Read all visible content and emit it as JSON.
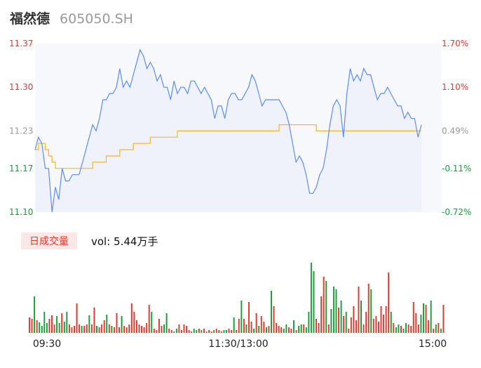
{
  "header": {
    "name": "福然德",
    "code": "605050.SH"
  },
  "volume": {
    "badge": "日成交量",
    "text": "vol: 5.44万手"
  },
  "colors": {
    "up": "#e03a2e",
    "down": "#1a9e3a",
    "neutral": "#999999",
    "price_line": "#5b8def",
    "avg_line": "#f2b632"
  },
  "chart_data": {
    "type": "line",
    "prev_close": 11.2,
    "ylim": [
      11.1,
      11.37
    ],
    "y_ticks": [
      {
        "label": "11.37",
        "pct": "1.70%",
        "value": 11.37,
        "dir": "up"
      },
      {
        "label": "11.30",
        "pct": "1.10%",
        "value": 11.3,
        "dir": "up"
      },
      {
        "label": "11.23",
        "pct": "0.49%",
        "value": 11.23,
        "dir": "neutral"
      },
      {
        "label": "11.17",
        "pct": "-0.11%",
        "value": 11.17,
        "dir": "down"
      },
      {
        "label": "11.10",
        "pct": "-0.72%",
        "value": 11.1,
        "dir": "down"
      }
    ],
    "x_ticks": [
      "09:30",
      "11:30/13:00",
      "15:00"
    ],
    "series": [
      {
        "values": [
          11.2,
          11.22,
          11.21,
          11.17,
          11.17,
          11.1,
          11.14,
          11.12,
          11.17,
          11.15,
          11.15,
          11.16,
          11.16,
          11.16,
          11.18,
          11.2,
          11.22,
          11.24,
          11.23,
          11.25,
          11.28,
          11.28,
          11.29,
          11.29,
          11.3,
          11.33,
          11.3,
          11.31,
          11.3,
          11.32,
          11.34,
          11.36,
          11.35,
          11.33,
          11.34,
          11.33,
          11.31,
          11.32,
          11.3,
          11.3,
          11.28,
          11.31,
          11.29,
          11.3,
          11.3,
          11.29,
          11.31,
          11.31,
          11.3,
          11.29,
          11.3,
          11.29,
          11.28,
          11.25,
          11.27,
          11.27,
          11.25,
          11.28,
          11.29,
          11.29,
          11.28,
          11.28,
          11.29,
          11.3,
          11.32,
          11.31,
          11.29,
          11.27,
          11.28,
          11.28,
          11.28,
          11.28,
          11.28,
          11.27,
          11.26,
          11.24,
          11.21,
          11.18,
          11.19,
          11.18,
          11.16,
          11.13,
          11.13,
          11.14,
          11.16,
          11.17,
          11.2,
          11.24,
          11.27,
          11.28,
          11.27,
          11.22,
          11.29,
          11.33,
          11.31,
          11.32,
          11.31,
          11.33,
          11.32,
          11.32,
          11.3,
          11.28,
          11.29,
          11.29,
          11.3,
          11.29,
          11.28,
          11.27,
          11.27,
          11.25,
          11.26,
          11.25,
          11.25,
          11.22,
          11.24
        ],
        "x_start": 0,
        "x_step": 2
      },
      {
        "values": [
          11.2,
          11.21,
          11.21,
          11.2,
          11.19,
          11.18,
          11.17,
          11.17,
          11.17,
          11.17,
          11.17,
          11.17,
          11.17,
          11.17,
          11.17,
          11.17,
          11.17,
          11.18,
          11.18,
          11.18,
          11.18,
          11.19,
          11.19,
          11.19,
          11.19,
          11.2,
          11.2,
          11.2,
          11.2,
          11.21,
          11.21,
          11.21,
          11.21,
          11.21,
          11.22,
          11.22,
          11.22,
          11.22,
          11.22,
          11.22,
          11.22,
          11.22,
          11.23,
          11.23,
          11.23,
          11.23,
          11.23,
          11.23,
          11.23,
          11.23,
          11.23,
          11.23,
          11.23,
          11.23,
          11.23,
          11.23,
          11.23,
          11.23,
          11.23,
          11.23,
          11.23,
          11.23,
          11.23,
          11.23,
          11.23,
          11.23,
          11.23,
          11.23,
          11.23,
          11.23,
          11.23,
          11.23,
          11.24,
          11.24,
          11.24,
          11.24,
          11.24,
          11.24,
          11.24,
          11.24,
          11.24,
          11.24,
          11.24,
          11.23,
          11.23,
          11.23,
          11.23,
          11.23,
          11.23,
          11.23,
          11.23,
          11.23,
          11.23,
          11.23,
          11.23,
          11.23,
          11.23,
          11.23,
          11.23,
          11.23,
          11.23,
          11.23,
          11.23,
          11.23,
          11.23,
          11.23,
          11.23,
          11.23,
          11.23,
          11.23,
          11.23,
          11.23,
          11.23,
          11.23,
          11.23
        ],
        "x_start": 0,
        "x_step": 2
      }
    ],
    "volume": {
      "ymax": 100,
      "bars": [
        [
          22,
          "up"
        ],
        [
          20,
          "up"
        ],
        [
          52,
          "down"
        ],
        [
          18,
          "up"
        ],
        [
          15,
          "down"
        ],
        [
          10,
          "down"
        ],
        [
          30,
          "down"
        ],
        [
          14,
          "down"
        ],
        [
          20,
          "up"
        ],
        [
          25,
          "up"
        ],
        [
          12,
          "up"
        ],
        [
          24,
          "down"
        ],
        [
          14,
          "down"
        ],
        [
          28,
          "up"
        ],
        [
          16,
          "down"
        ],
        [
          30,
          "down"
        ],
        [
          12,
          "up"
        ],
        [
          8,
          "up"
        ],
        [
          10,
          "up"
        ],
        [
          42,
          "up"
        ],
        [
          12,
          "up"
        ],
        [
          10,
          "down"
        ],
        [
          10,
          "up"
        ],
        [
          12,
          "up"
        ],
        [
          25,
          "down"
        ],
        [
          12,
          "up"
        ],
        [
          36,
          "up"
        ],
        [
          10,
          "down"
        ],
        [
          8,
          "up"
        ],
        [
          12,
          "up"
        ],
        [
          18,
          "up"
        ],
        [
          26,
          "down"
        ],
        [
          12,
          "up"
        ],
        [
          10,
          "down"
        ],
        [
          8,
          "up"
        ],
        [
          28,
          "up"
        ],
        [
          8,
          "up"
        ],
        [
          24,
          "down"
        ],
        [
          10,
          "up"
        ],
        [
          8,
          "up"
        ],
        [
          12,
          "up"
        ],
        [
          42,
          "up"
        ],
        [
          30,
          "up"
        ],
        [
          18,
          "up"
        ],
        [
          12,
          "up"
        ],
        [
          10,
          "up"
        ],
        [
          8,
          "up"
        ],
        [
          14,
          "up"
        ],
        [
          40,
          "up"
        ],
        [
          30,
          "down"
        ],
        [
          6,
          "up"
        ],
        [
          4,
          "up"
        ],
        [
          20,
          "up"
        ],
        [
          10,
          "up"
        ],
        [
          12,
          "down"
        ],
        [
          28,
          "down"
        ],
        [
          6,
          "up"
        ],
        [
          4,
          "up"
        ],
        [
          2,
          "down"
        ],
        [
          6,
          "down"
        ],
        [
          12,
          "up"
        ],
        [
          4,
          "up"
        ],
        [
          12,
          "up"
        ],
        [
          10,
          "up"
        ],
        [
          4,
          "up"
        ],
        [
          2,
          "up"
        ],
        [
          6,
          "down"
        ],
        [
          4,
          "down"
        ],
        [
          6,
          "up"
        ],
        [
          4,
          "down"
        ],
        [
          6,
          "up"
        ],
        [
          2,
          "up"
        ],
        [
          4,
          "up"
        ],
        [
          2,
          "up"
        ],
        [
          4,
          "down"
        ],
        [
          6,
          "up"
        ],
        [
          4,
          "up"
        ],
        [
          2,
          "up"
        ],
        [
          4,
          "down"
        ],
        [
          4,
          "down"
        ],
        [
          6,
          "up"
        ],
        [
          4,
          "up"
        ],
        [
          22,
          "down"
        ],
        [
          4,
          "up"
        ],
        [
          20,
          "up"
        ],
        [
          46,
          "down"
        ],
        [
          20,
          "up"
        ],
        [
          12,
          "down"
        ],
        [
          44,
          "up"
        ],
        [
          16,
          "up"
        ],
        [
          6,
          "down"
        ],
        [
          28,
          "up"
        ],
        [
          10,
          "down"
        ],
        [
          24,
          "up"
        ],
        [
          16,
          "up"
        ],
        [
          8,
          "down"
        ],
        [
          10,
          "up"
        ],
        [
          60,
          "down"
        ],
        [
          38,
          "up"
        ],
        [
          14,
          "up"
        ],
        [
          10,
          "up"
        ],
        [
          8,
          "up"
        ],
        [
          6,
          "down"
        ],
        [
          12,
          "down"
        ],
        [
          8,
          "up"
        ],
        [
          6,
          "up"
        ],
        [
          18,
          "down"
        ],
        [
          4,
          "up"
        ],
        [
          10,
          "down"
        ],
        [
          12,
          "down"
        ],
        [
          12,
          "up"
        ],
        [
          8,
          "down"
        ],
        [
          30,
          "down"
        ],
        [
          100,
          "down"
        ],
        [
          88,
          "down"
        ],
        [
          20,
          "up"
        ],
        [
          14,
          "up"
        ],
        [
          52,
          "up"
        ],
        [
          80,
          "up"
        ],
        [
          74,
          "down"
        ],
        [
          12,
          "up"
        ],
        [
          34,
          "down"
        ],
        [
          66,
          "down"
        ],
        [
          62,
          "down"
        ],
        [
          36,
          "up"
        ],
        [
          46,
          "down"
        ],
        [
          24,
          "up"
        ],
        [
          30,
          "down"
        ],
        [
          6,
          "up"
        ],
        [
          22,
          "up"
        ],
        [
          38,
          "up"
        ],
        [
          18,
          "up"
        ],
        [
          66,
          "up"
        ],
        [
          46,
          "down"
        ],
        [
          12,
          "up"
        ],
        [
          30,
          "up"
        ],
        [
          70,
          "up"
        ],
        [
          62,
          "down"
        ],
        [
          20,
          "up"
        ],
        [
          24,
          "up"
        ],
        [
          16,
          "up"
        ],
        [
          38,
          "up"
        ],
        [
          26,
          "up"
        ],
        [
          38,
          "up"
        ],
        [
          86,
          "up"
        ],
        [
          30,
          "down"
        ],
        [
          14,
          "up"
        ],
        [
          8,
          "down"
        ],
        [
          12,
          "down"
        ],
        [
          10,
          "up"
        ],
        [
          6,
          "down"
        ],
        [
          14,
          "down"
        ],
        [
          12,
          "up"
        ],
        [
          10,
          "up"
        ],
        [
          44,
          "up"
        ],
        [
          28,
          "up"
        ],
        [
          12,
          "up"
        ],
        [
          26,
          "down"
        ],
        [
          42,
          "down"
        ],
        [
          40,
          "up"
        ],
        [
          18,
          "up"
        ],
        [
          46,
          "down"
        ],
        [
          6,
          "up"
        ],
        [
          12,
          "down"
        ],
        [
          14,
          "up"
        ],
        [
          6,
          "down"
        ],
        [
          40,
          "up"
        ]
      ]
    }
  }
}
